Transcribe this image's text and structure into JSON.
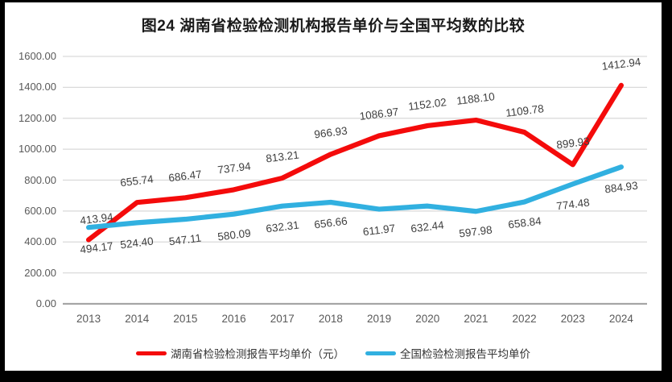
{
  "chart_data": {
    "type": "line",
    "title": "图24 湖南省检验检测机构报告单价与全国平均数的比较",
    "categories": [
      "2013",
      "2014",
      "2015",
      "2016",
      "2017",
      "2018",
      "2019",
      "2020",
      "2021",
      "2022",
      "2023",
      "2024"
    ],
    "series": [
      {
        "name": "湖南省检验检测报告平均单价（元）",
        "color": "#F40B0B",
        "label_position": "above",
        "values": [
          413.94,
          655.74,
          686.47,
          737.94,
          813.21,
          966.93,
          1086.97,
          1152.02,
          1188.1,
          1109.78,
          899.93,
          1412.94
        ]
      },
      {
        "name": "全国检验检测报告平均单价",
        "color": "#31B0E0",
        "label_position": "below",
        "values": [
          494.17,
          524.4,
          547.11,
          580.09,
          632.31,
          656.66,
          611.97,
          632.44,
          597.98,
          658.84,
          774.48,
          884.93
        ]
      }
    ],
    "y_axis": {
      "min": 0,
      "max": 1600,
      "step": 200,
      "tick_labels": [
        "0.00",
        "200.00",
        "400.00",
        "600.00",
        "800.00",
        "1000.00",
        "1200.00",
        "1400.00",
        "1600.00"
      ]
    },
    "grid": true,
    "legend_position": "bottom",
    "styles": {
      "gridline_color": "#D9D9D9",
      "zero_axis_color": "#A6A6A6",
      "data_label_color": "#3F3F3F",
      "tick_label_color": "#595959",
      "title_color": "#1A1A1A",
      "background": "#FFFFFF",
      "frame_color": "#000000"
    }
  }
}
